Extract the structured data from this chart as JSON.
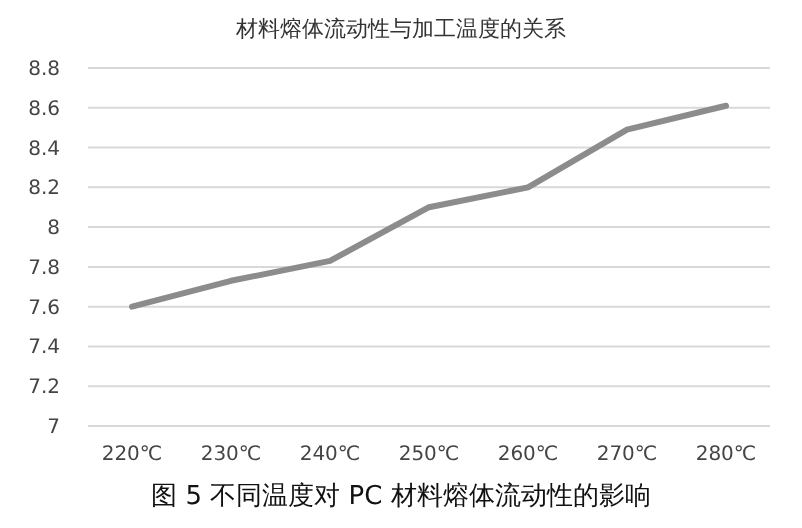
{
  "chart_data": {
    "type": "line",
    "title": "材料熔体流动性与加工温度的关系",
    "categories": [
      "220℃",
      "230℃",
      "240℃",
      "250℃",
      "260℃",
      "270℃",
      "280℃"
    ],
    "series": [
      {
        "color": "#8c8c8c",
        "values": [
          7.6,
          7.73,
          7.83,
          8.1,
          8.2,
          8.49,
          8.61
        ]
      }
    ],
    "ylim": [
      7,
      8.8
    ],
    "yticks": [
      7,
      {
        "value": 7.2,
        "label": "7.2"
      },
      {
        "value": 7.4,
        "label": "7.4"
      },
      {
        "value": 7.6,
        "label": "7.6"
      },
      {
        "value": 7.8,
        "label": "7.8"
      },
      8,
      {
        "value": 8.2,
        "label": "8.2"
      },
      {
        "value": 8.4,
        "label": "8.4"
      },
      {
        "value": 8.6,
        "label": "8.6"
      },
      {
        "value": 8.8,
        "label": "8.8"
      }
    ],
    "grid": "y",
    "marker": "none",
    "line_style": "solid",
    "annotations": [
      "图 5   不同温度对 PC 材料熔体流动性的影响"
    ]
  }
}
